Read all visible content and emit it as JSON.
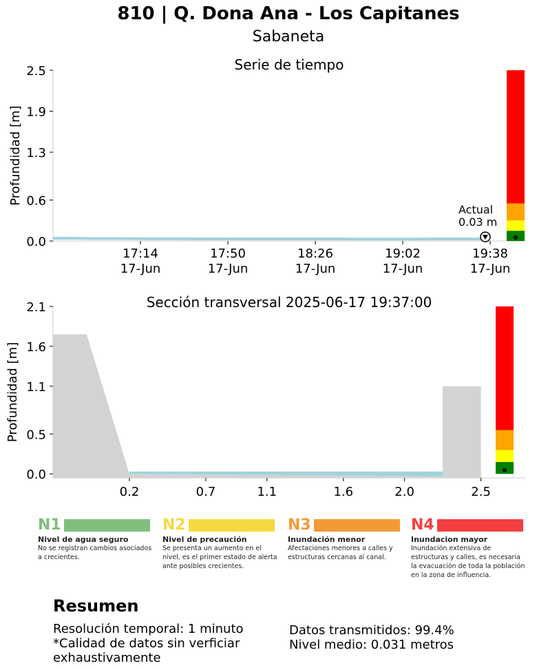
{
  "header": {
    "title": "810 | Q. Dona Ana - Los Capitanes",
    "subtitle": "Sabaneta"
  },
  "colors": {
    "water": "#9fd3dc",
    "terrain": "#d3d3d3",
    "level_green": "#008000",
    "level_yellow": "#ffff00",
    "level_orange": "#ffa500",
    "level_red": "#ff0000",
    "n1": "#7fbf7b",
    "n2": "#f5d940",
    "n3": "#f39a36",
    "n4": "#f33f3f"
  },
  "chart_data": [
    {
      "type": "line",
      "title": "Serie de tiempo",
      "ylabel": "Profundidad [m]",
      "ylim": [
        0,
        2.5
      ],
      "yticks": [
        "0.0",
        "0.6",
        "1.3",
        "1.9",
        "2.5"
      ],
      "xticks": [
        "17:14\n17-Jun",
        "17:50\n17-Jun",
        "18:26\n17-Jun",
        "19:02\n17-Jun",
        "19:38\n17-Jun"
      ],
      "x_range_minutes": [
        -18,
        162
      ],
      "xtick_minutes": [
        18,
        54,
        90,
        126,
        162
      ],
      "series": [
        {
          "x_minutes": [
            -18,
            -10,
            0,
            10,
            20,
            30,
            40,
            50,
            60,
            70,
            80,
            90,
            100,
            110,
            120,
            130,
            140,
            150,
            155,
            160
          ],
          "values": [
            0.04,
            0.04,
            0.035,
            0.035,
            0.033,
            0.033,
            0.032,
            0.032,
            0.031,
            0.031,
            0.03,
            0.03,
            0.03,
            0.029,
            0.029,
            0.029,
            0.03,
            0.03,
            0.03,
            0.03
          ]
        }
      ],
      "annotation": {
        "label": "Actual",
        "value_text": "0.03 m",
        "x_minutes": 160,
        "y": 0.03
      },
      "level_bar": [
        {
          "from": 0,
          "to": 0.15,
          "color": "#008000"
        },
        {
          "from": 0.15,
          "to": 0.3,
          "color": "#ffff00"
        },
        {
          "from": 0.3,
          "to": 0.55,
          "color": "#ffa500"
        },
        {
          "from": 0.55,
          "to": 2.5,
          "color": "#ff0000"
        }
      ],
      "current_level": 0.03
    },
    {
      "type": "area",
      "title": "Sección transversal 2025-06-17 19:37:00",
      "ylabel": "Profundidad [m]",
      "ylim": [
        -0.05,
        2.1
      ],
      "yticks": [
        "0.0",
        "0.5",
        "1.1",
        "1.6",
        "2.1"
      ],
      "xticks": [
        "0.2",
        "0.7",
        "1.1",
        "1.6",
        "2.0",
        "2.5"
      ],
      "xtick_values": [
        0.2,
        0.7,
        1.1,
        1.6,
        2.0,
        2.5
      ],
      "xlim": [
        -0.3,
        2.79
      ],
      "terrain": {
        "x": [
          -0.3,
          -0.08,
          0.2,
          2.25,
          2.25,
          2.5,
          2.5,
          2.79
        ],
        "y": [
          1.75,
          1.75,
          0.0,
          -0.03,
          1.1,
          1.1,
          -0.05,
          -0.05
        ]
      },
      "water_level": 0.03,
      "water_x": [
        0.2,
        2.25
      ],
      "level_bar": [
        {
          "from": 0,
          "to": 0.15,
          "color": "#008000"
        },
        {
          "from": 0.15,
          "to": 0.3,
          "color": "#ffff00"
        },
        {
          "from": 0.3,
          "to": 0.55,
          "color": "#ffa500"
        },
        {
          "from": 0.55,
          "to": 2.1,
          "color": "#ff0000"
        }
      ],
      "current_level": 0.03
    }
  ],
  "legend": [
    {
      "code": "N1",
      "name": "Nivel de agua seguro",
      "desc": "No se registran cambios asociados a crecientes."
    },
    {
      "code": "N2",
      "name": "Nivel de precaución",
      "desc": "Se presenta un aumento en el nivel, es el primer estado de alerta ante posibles crecientes."
    },
    {
      "code": "N3",
      "name": "Inundación menor",
      "desc": "Afectaciones menores a calles y estructuras cercanas al canal."
    },
    {
      "code": "N4",
      "name": "Inundacion mayor",
      "desc": "Inundación extensiva de estructuras y calles, es necesaria la evacuación de toda la población en la zona de influencia."
    }
  ],
  "summary": {
    "title": "Resumen",
    "left_line1": "Resolución temporal: 1 minuto",
    "left_line2": "*Calidad de datos sin verficiar",
    "left_line3": "exhaustivamente",
    "right_line1": "Datos transmitidos: 99.4%",
    "right_line2": "Nivel medio: 0.031 metros"
  }
}
